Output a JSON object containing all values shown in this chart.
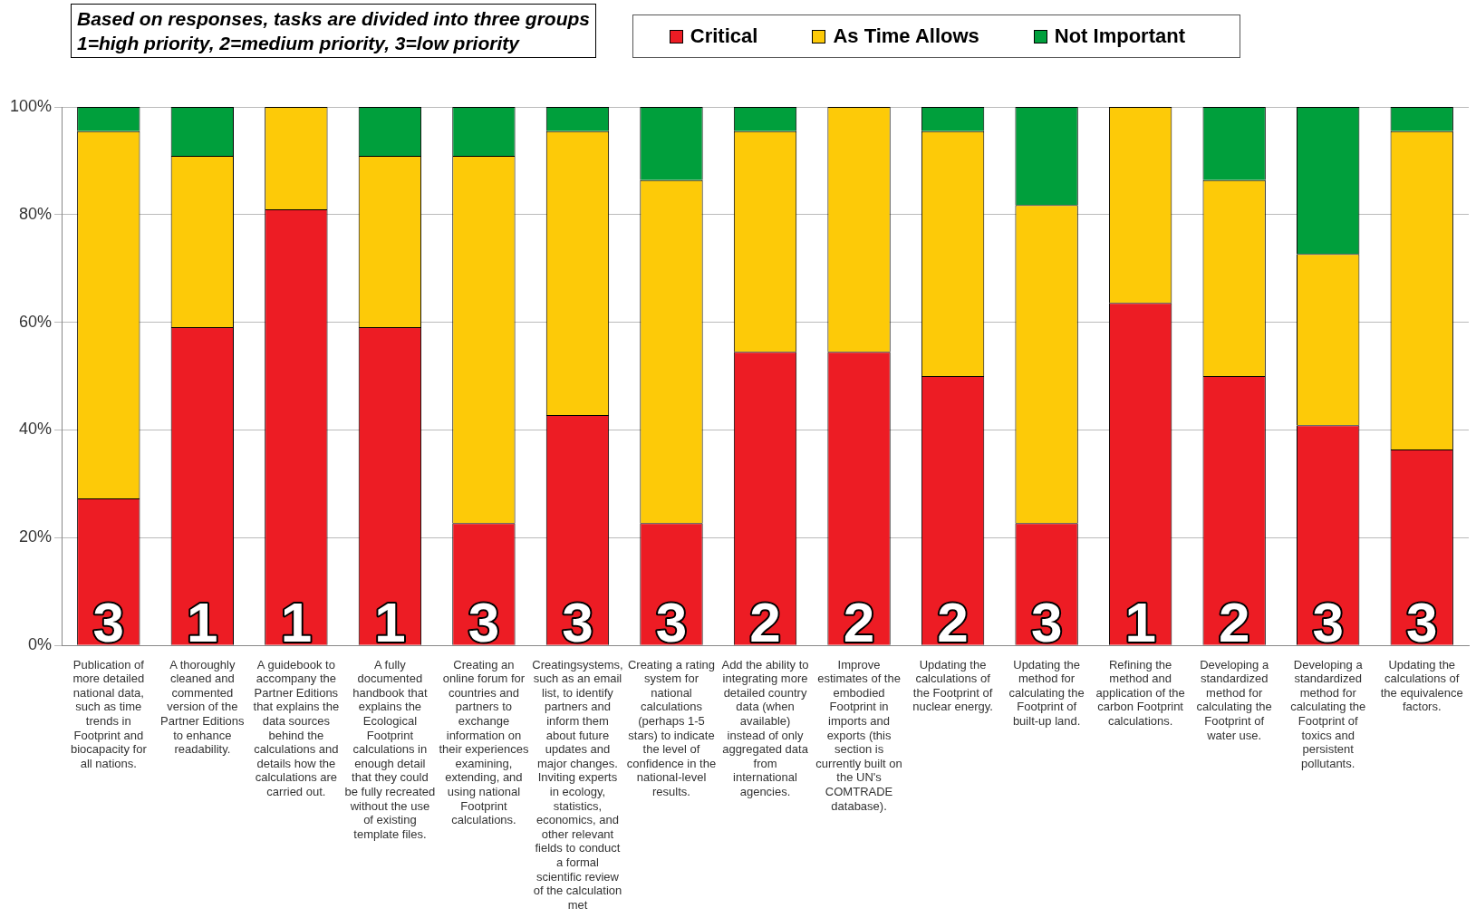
{
  "chart_data": {
    "type": "bar",
    "stacked": true,
    "title": "Based on responses, tasks are divided into three groups",
    "subtitle": "1=high priority, 2=medium priority, 3=low priority",
    "categories": [
      "Publication of more detailed national data, such as time trends in Footprint and biocapacity for all nations.",
      "A thoroughly cleaned and commented version of the Partner Editions to enhance readability.",
      "A guidebook to accompany the Partner Editions that explains the data sources behind the calculations and details how the calculations are carried out.",
      "A fully documented handbook that explains the Ecological Footprint calculations in enough detail that they could be fully recreated without the use of existing template files.",
      "Creating an online forum for countries and partners to exchange information on their experiences examining, extending, and using national Footprint calculations.",
      "Creatingsystems, such as an email list, to identify partners and inform them about future updates and major changes. Inviting experts in ecology, statistics, economics, and other relevant fields to conduct a formal scientific review of the calculation met",
      "Creating a rating system for national calculations (perhaps 1-5 stars) to indicate the level of confidence in the national-level results.",
      "Add the ability to integrating more detailed country data (when available) instead of only aggregated data from international agencies.",
      "Improve estimates of the embodied Footprint in imports and exports (this section is currently built on the UN's COMTRADE database).",
      "Updating the calculations of the Footprint of nuclear energy.",
      "Updating the method for calculating the Footprint of built-up land.",
      "Refining the method and application of the carbon Footprint calculations.",
      "Developing a standardized method for calculating the Footprint of water use.",
      "Developing a standardized method for calculating the Footprint of toxics and persistent pollutants.",
      "Updating the calculations of the equivalence factors."
    ],
    "series": [
      {
        "name": "Critical",
        "color": "#ed1c24",
        "values": [
          27.3,
          59.1,
          81,
          59.1,
          22.7,
          42.8,
          22.7,
          54.5,
          54.5,
          50,
          22.7,
          63.6,
          50,
          40.9,
          36.4
        ]
      },
      {
        "name": "As Time Allows",
        "color": "#fdca08",
        "values": [
          68.2,
          31.8,
          19,
          31.8,
          68.2,
          52.7,
          63.7,
          41,
          45.5,
          45.5,
          59.1,
          36.4,
          36.4,
          31.8,
          59.1
        ]
      },
      {
        "name": "Not Important",
        "color": "#009f3c",
        "values": [
          4.5,
          9.1,
          0,
          9.1,
          9.1,
          4.5,
          13.6,
          4.5,
          0,
          4.5,
          18.2,
          0,
          13.6,
          27.3,
          4.5
        ]
      }
    ],
    "ylim": [
      0,
      100
    ],
    "yticks": [
      {
        "value": 0,
        "label": "0%"
      },
      {
        "value": 20,
        "label": "20%"
      },
      {
        "value": 40,
        "label": "40%"
      },
      {
        "value": 60,
        "label": "60%"
      },
      {
        "value": 80,
        "label": "80%"
      },
      {
        "value": 100,
        "label": "100%"
      }
    ],
    "grid": "y",
    "legend": "top right",
    "annotations": [
      "3",
      "1",
      "1",
      "1",
      "3",
      "3",
      "3",
      "2",
      "2",
      "2",
      "3",
      "1",
      "2",
      "3",
      "3"
    ]
  }
}
